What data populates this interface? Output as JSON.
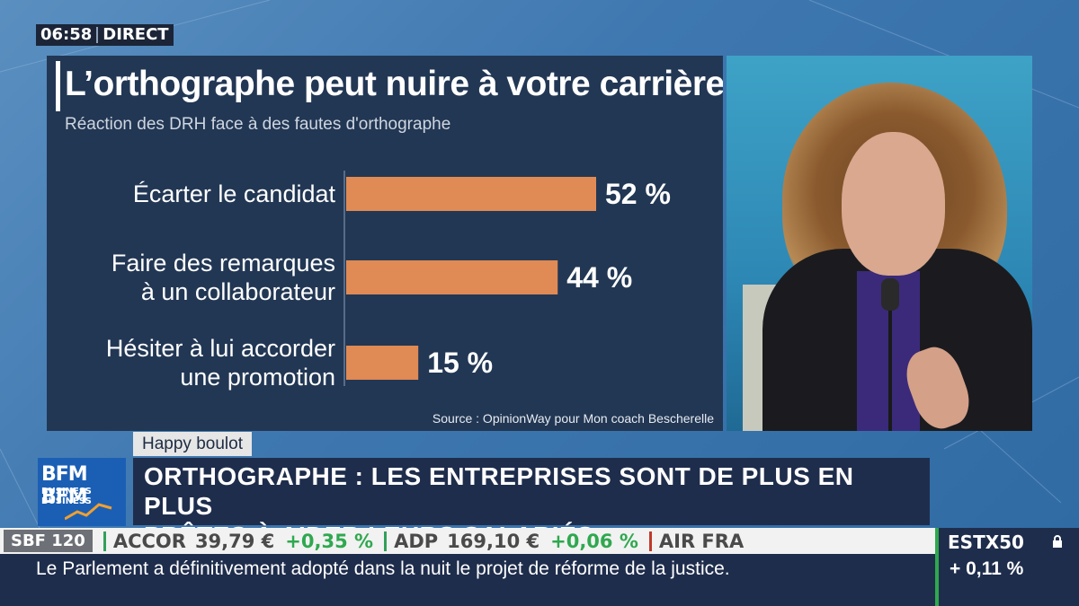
{
  "clock": {
    "time": "06:58",
    "live": "DIRECT"
  },
  "chart_data": {
    "type": "bar",
    "orientation": "horizontal",
    "title": "L’orthographe peut nuire à votre carrière",
    "subtitle": "Réaction des DRH face à des fautes d'orthographe",
    "categories": [
      [
        "Écarter le candidat"
      ],
      [
        "Faire des remarques",
        "à un collaborateur"
      ],
      [
        "Hésiter à lui accorder",
        "une promotion"
      ]
    ],
    "values": [
      52,
      44,
      15
    ],
    "value_labels": [
      "52 %",
      "44 %",
      "15 %"
    ],
    "source": "Source : OpinionWay pour Mon coach Bescherelle",
    "bar_color": "#e08a55",
    "background_color": "#223754",
    "grid": false,
    "xlim": [
      0,
      52
    ]
  },
  "lower_third": {
    "program": "Happy boulot",
    "headline_line1": "ORTHOGRAPHE : LES ENTREPRISES SONT DE PLUS EN PLUS",
    "headline_line2": "PRÊTES À AIDER LEURS SALARIÉS",
    "logo_line1": "BFM BFM",
    "logo_line2": "BUSINESS BUSINESS"
  },
  "ticker": {
    "index": "SBF 120",
    "quotes": [
      {
        "name": "ACCOR",
        "price": "39,79 €",
        "change": "+0,35 %",
        "color": "#2fa84f"
      },
      {
        "name": "ADP",
        "price": "169,10 €",
        "change": "+0,06 %",
        "color": "#2fa84f"
      },
      {
        "name": "AIR FRA",
        "price": "",
        "change": "",
        "color": "#c0392b"
      }
    ]
  },
  "news": "Le Parlement a définitivement adopté dans la nuit le projet de réforme de la justice.",
  "market": {
    "name": "ESTX50",
    "change": "+ 0,11 %",
    "icon": "lock-icon"
  }
}
